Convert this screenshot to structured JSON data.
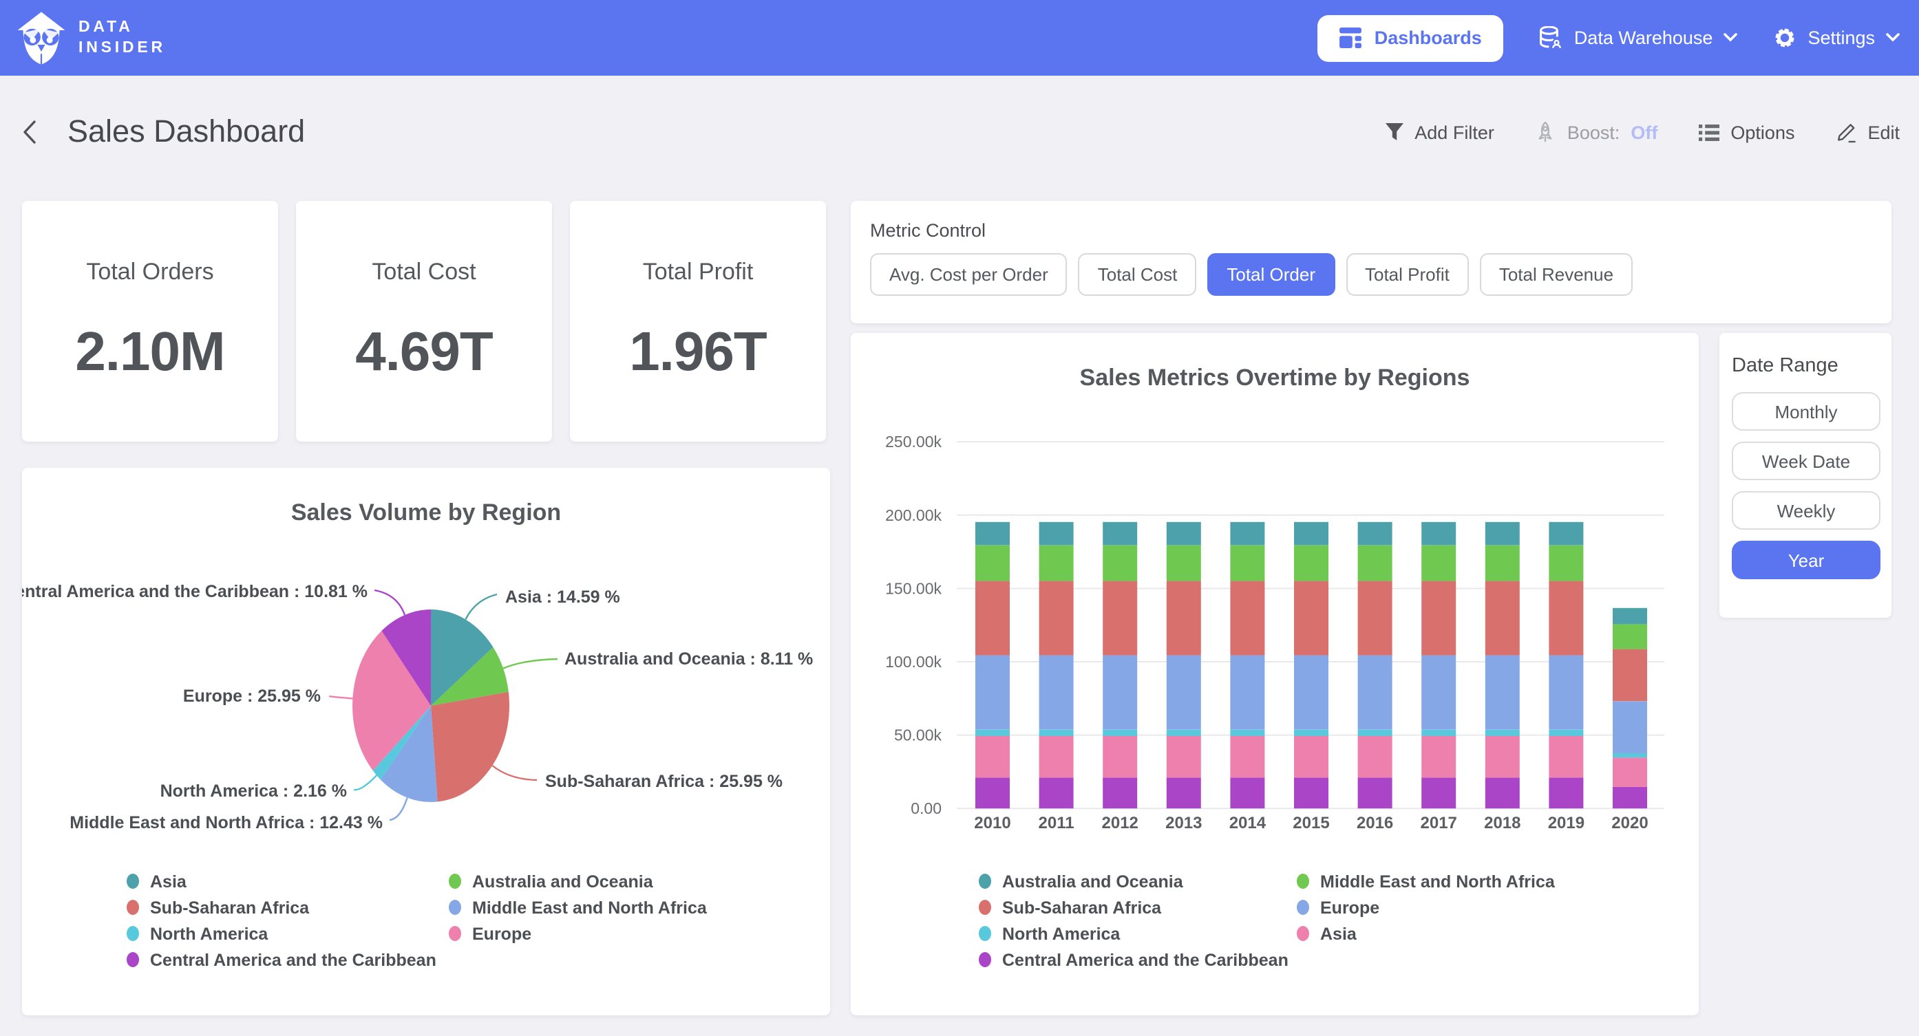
{
  "navbar": {
    "brand_line1": "DATA",
    "brand_line2": "INSIDER",
    "dashboards_label": "Dashboards",
    "data_warehouse_label": "Data Warehouse",
    "settings_label": "Settings"
  },
  "header": {
    "title": "Sales Dashboard",
    "actions": {
      "add_filter": "Add Filter",
      "boost_label": "Boost:",
      "boost_state": "Off",
      "options": "Options",
      "edit": "Edit"
    }
  },
  "kpis": [
    {
      "title": "Total Orders",
      "value": "2.10M"
    },
    {
      "title": "Total Cost",
      "value": "4.69T"
    },
    {
      "title": "Total Profit",
      "value": "1.96T"
    }
  ],
  "metric_control": {
    "label": "Metric Control",
    "options": [
      {
        "label": "Avg. Cost per Order",
        "selected": false
      },
      {
        "label": "Total Cost",
        "selected": false
      },
      {
        "label": "Total Order",
        "selected": true
      },
      {
        "label": "Total Profit",
        "selected": false
      },
      {
        "label": "Total Revenue",
        "selected": false
      }
    ]
  },
  "date_range": {
    "label": "Date Range",
    "options": [
      {
        "label": "Monthly",
        "selected": false
      },
      {
        "label": "Week Date",
        "selected": false
      },
      {
        "label": "Weekly",
        "selected": false
      },
      {
        "label": "Year",
        "selected": true
      }
    ]
  },
  "colors": {
    "accent": "#5b75f1",
    "teal": "#4da1aa",
    "green": "#6fc84f",
    "red": "#d8716d",
    "periwinkle": "#85a7e6",
    "cyan": "#58c8dc",
    "pink": "#ee80ad",
    "purple": "#ab45c8"
  },
  "chart_data": [
    {
      "type": "pie",
      "title": "Sales Volume by Region",
      "label_format": "{label} : {pct} %",
      "slices": [
        {
          "label": "Asia",
          "pct": 14.59,
          "color": "#4da1aa"
        },
        {
          "label": "Australia and Oceania",
          "pct": 8.11,
          "color": "#6fc84f"
        },
        {
          "label": "Sub-Saharan Africa",
          "pct": 25.95,
          "color": "#d8716d"
        },
        {
          "label": "Middle East and North Africa",
          "pct": 12.43,
          "color": "#85a7e6"
        },
        {
          "label": "North America",
          "pct": 2.16,
          "color": "#58c8dc"
        },
        {
          "label": "Europe",
          "pct": 25.95,
          "color": "#ee80ad"
        },
        {
          "label": "Central America and the Caribbean",
          "pct": 10.81,
          "color": "#ab45c8"
        }
      ],
      "legend": [
        {
          "label": "Asia",
          "color": "#4da1aa"
        },
        {
          "label": "Sub-Saharan Africa",
          "color": "#d8716d"
        },
        {
          "label": "North America",
          "color": "#58c8dc"
        },
        {
          "label": "Central America and the Caribbean",
          "color": "#ab45c8"
        },
        {
          "label": "Australia and Oceania",
          "color": "#6fc84f"
        },
        {
          "label": "Middle East and North Africa",
          "color": "#85a7e6"
        },
        {
          "label": "Europe",
          "color": "#ee80ad"
        }
      ]
    },
    {
      "type": "bar",
      "stacked": true,
      "title": "Sales Metrics Overtime by Regions",
      "categories": [
        "2010",
        "2011",
        "2012",
        "2013",
        "2014",
        "2015",
        "2016",
        "2017",
        "2018",
        "2019",
        "2020"
      ],
      "unit": "k",
      "ylim_k": [
        0,
        250
      ],
      "grid": true,
      "yticks": [
        {
          "v": 0,
          "label": "0.00"
        },
        {
          "v": 50,
          "label": "50.00k"
        },
        {
          "v": 100,
          "label": "100.00k"
        },
        {
          "v": 150,
          "label": "150.00k"
        },
        {
          "v": 200,
          "label": "200.00k"
        },
        {
          "v": 250,
          "label": "250.00k"
        }
      ],
      "series": [
        {
          "name": "Central America and the Caribbean",
          "color": "#ab45c8",
          "values_k": [
            21,
            21,
            21,
            21,
            21,
            21,
            21,
            21,
            21,
            21,
            14.7
          ]
        },
        {
          "name": "Asia",
          "color": "#ee80ad",
          "values_k": [
            28.5,
            28.5,
            28.5,
            28.5,
            28.5,
            28.5,
            28.5,
            28.5,
            28.5,
            28.5,
            20
          ]
        },
        {
          "name": "North America",
          "color": "#58c8dc",
          "values_k": [
            4.2,
            4.2,
            4.2,
            4.2,
            4.2,
            4.2,
            4.2,
            4.2,
            4.2,
            4.2,
            2.9
          ]
        },
        {
          "name": "Europe",
          "color": "#85a7e6",
          "values_k": [
            50.7,
            50.7,
            50.7,
            50.7,
            50.7,
            50.7,
            50.7,
            50.7,
            50.7,
            50.7,
            35.5
          ]
        },
        {
          "name": "Sub-Saharan Africa",
          "color": "#d8716d",
          "values_k": [
            50.7,
            50.7,
            50.7,
            50.7,
            50.7,
            50.7,
            50.7,
            50.7,
            50.7,
            50.7,
            35.5
          ]
        },
        {
          "name": "Middle East and North Africa",
          "color": "#6fc84f",
          "values_k": [
            24.3,
            24.3,
            24.3,
            24.3,
            24.3,
            24.3,
            24.3,
            24.3,
            24.3,
            24.3,
            17
          ]
        },
        {
          "name": "Australia and Oceania",
          "color": "#4da1aa",
          "values_k": [
            15.9,
            15.9,
            15.9,
            15.9,
            15.9,
            15.9,
            15.9,
            15.9,
            15.9,
            15.9,
            11.1
          ]
        }
      ],
      "legend": [
        {
          "label": "Australia and Oceania",
          "color": "#4da1aa"
        },
        {
          "label": "Sub-Saharan Africa",
          "color": "#d8716d"
        },
        {
          "label": "North America",
          "color": "#58c8dc"
        },
        {
          "label": "Central America and the Caribbean",
          "color": "#ab45c8"
        },
        {
          "label": "Middle East and North Africa",
          "color": "#6fc84f"
        },
        {
          "label": "Europe",
          "color": "#85a7e6"
        },
        {
          "label": "Asia",
          "color": "#ee80ad"
        }
      ]
    }
  ]
}
